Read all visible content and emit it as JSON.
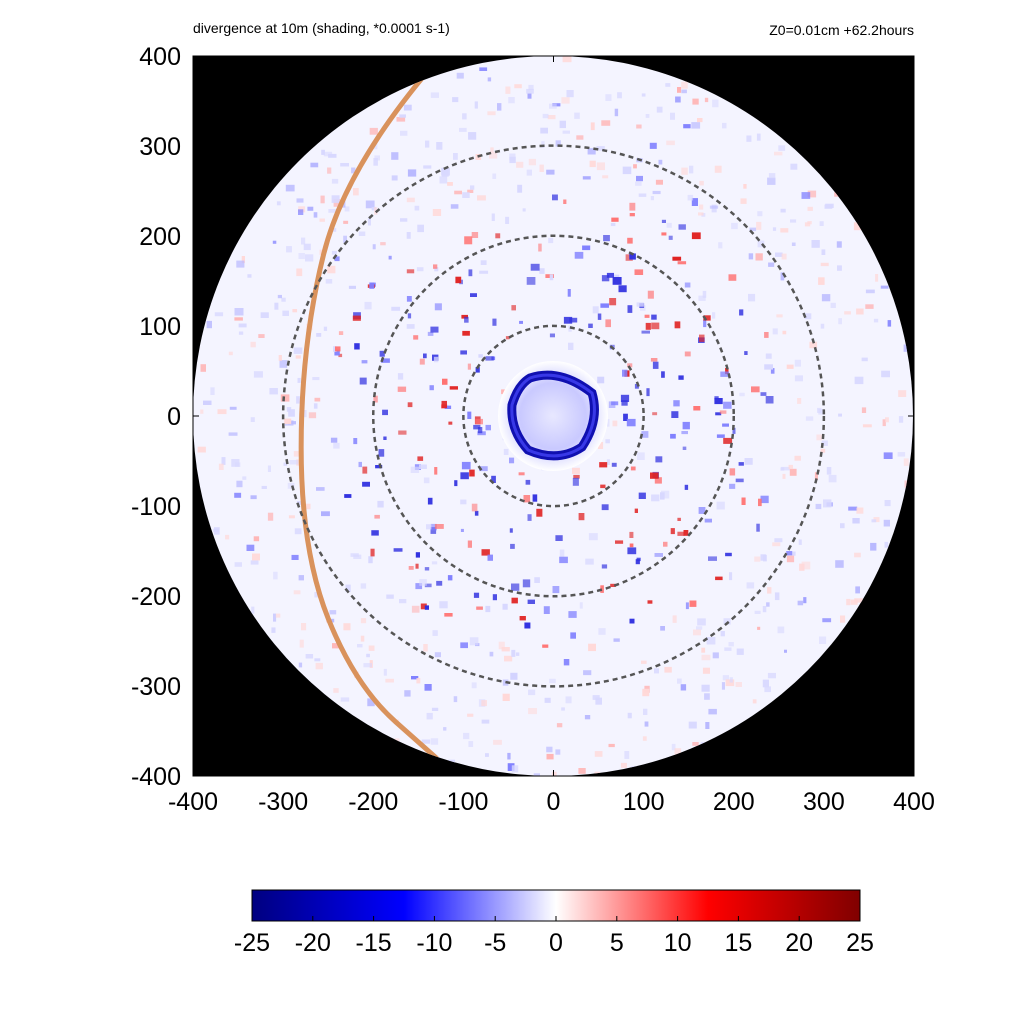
{
  "chart_data": {
    "type": "heatmap",
    "title": "divergence at 10m (shading, *0.0001 s-1)",
    "subtitle": "Z0=0.01cm  +62.2hours",
    "xlabel": "",
    "ylabel": "",
    "xlim": [
      -400,
      400
    ],
    "ylim": [
      -400,
      400
    ],
    "x_ticks": [
      "-400",
      "-300",
      "-200",
      "-100",
      "0",
      "100",
      "200",
      "300",
      "400"
    ],
    "y_ticks": [
      "400",
      "300",
      "200",
      "100",
      "0",
      "-100",
      "-200",
      "-300",
      "-400"
    ],
    "domain_radius": 400,
    "background_color": "#000000",
    "range_rings": [
      100,
      200,
      300
    ],
    "eyewall_convergence": {
      "center": [
        0,
        0
      ],
      "radius": 40,
      "sign": "negative"
    },
    "land_boundary_arc": {
      "color": "#d9925c",
      "points": [
        [
          -125,
          400
        ],
        [
          -230,
          280
        ],
        [
          -280,
          80
        ],
        [
          -280,
          -150
        ],
        [
          -220,
          -300
        ],
        [
          -130,
          -380
        ]
      ]
    },
    "colorbar": {
      "min": -25,
      "max": 25,
      "ticks": [
        "-25",
        "-20",
        "-15",
        "-10",
        "-5",
        "0",
        "5",
        "10",
        "15",
        "20",
        "25"
      ],
      "colors": [
        "#000080",
        "#0000ff",
        "#ffffff",
        "#ff0000",
        "#800000"
      ]
    }
  }
}
